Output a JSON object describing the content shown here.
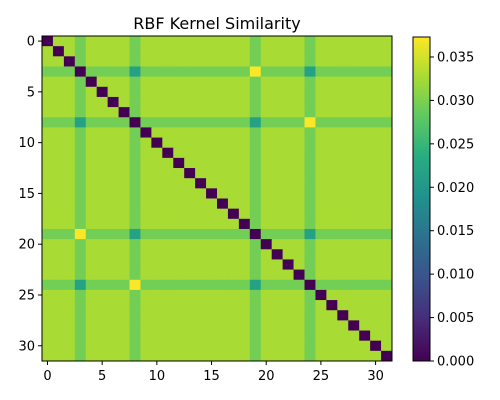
{
  "chart_data": {
    "type": "heatmap",
    "title": "RBF Kernel Similarity",
    "xlabel": "",
    "ylabel": "",
    "size": 32,
    "diagonal_value": 0.0,
    "default_value": 0.0327,
    "band_rows": [
      3,
      8,
      19,
      24
    ],
    "band_value": 0.0294,
    "pair_low_value": 0.0217,
    "pair_high_value": 0.0372,
    "colormap": "viridis",
    "colorbar": {
      "min": 0.0,
      "max": 0.0373,
      "ticks": [
        0.0,
        0.005,
        0.01,
        0.015,
        0.02,
        0.025,
        0.03,
        0.035
      ],
      "tick_labels": [
        "0.000",
        "0.005",
        "0.010",
        "0.015",
        "0.020",
        "0.025",
        "0.030",
        "0.035"
      ]
    },
    "x_ticks": [
      0,
      5,
      10,
      15,
      20,
      25,
      30
    ],
    "y_ticks": [
      0,
      5,
      10,
      15,
      20,
      25,
      30
    ],
    "grid": false
  }
}
